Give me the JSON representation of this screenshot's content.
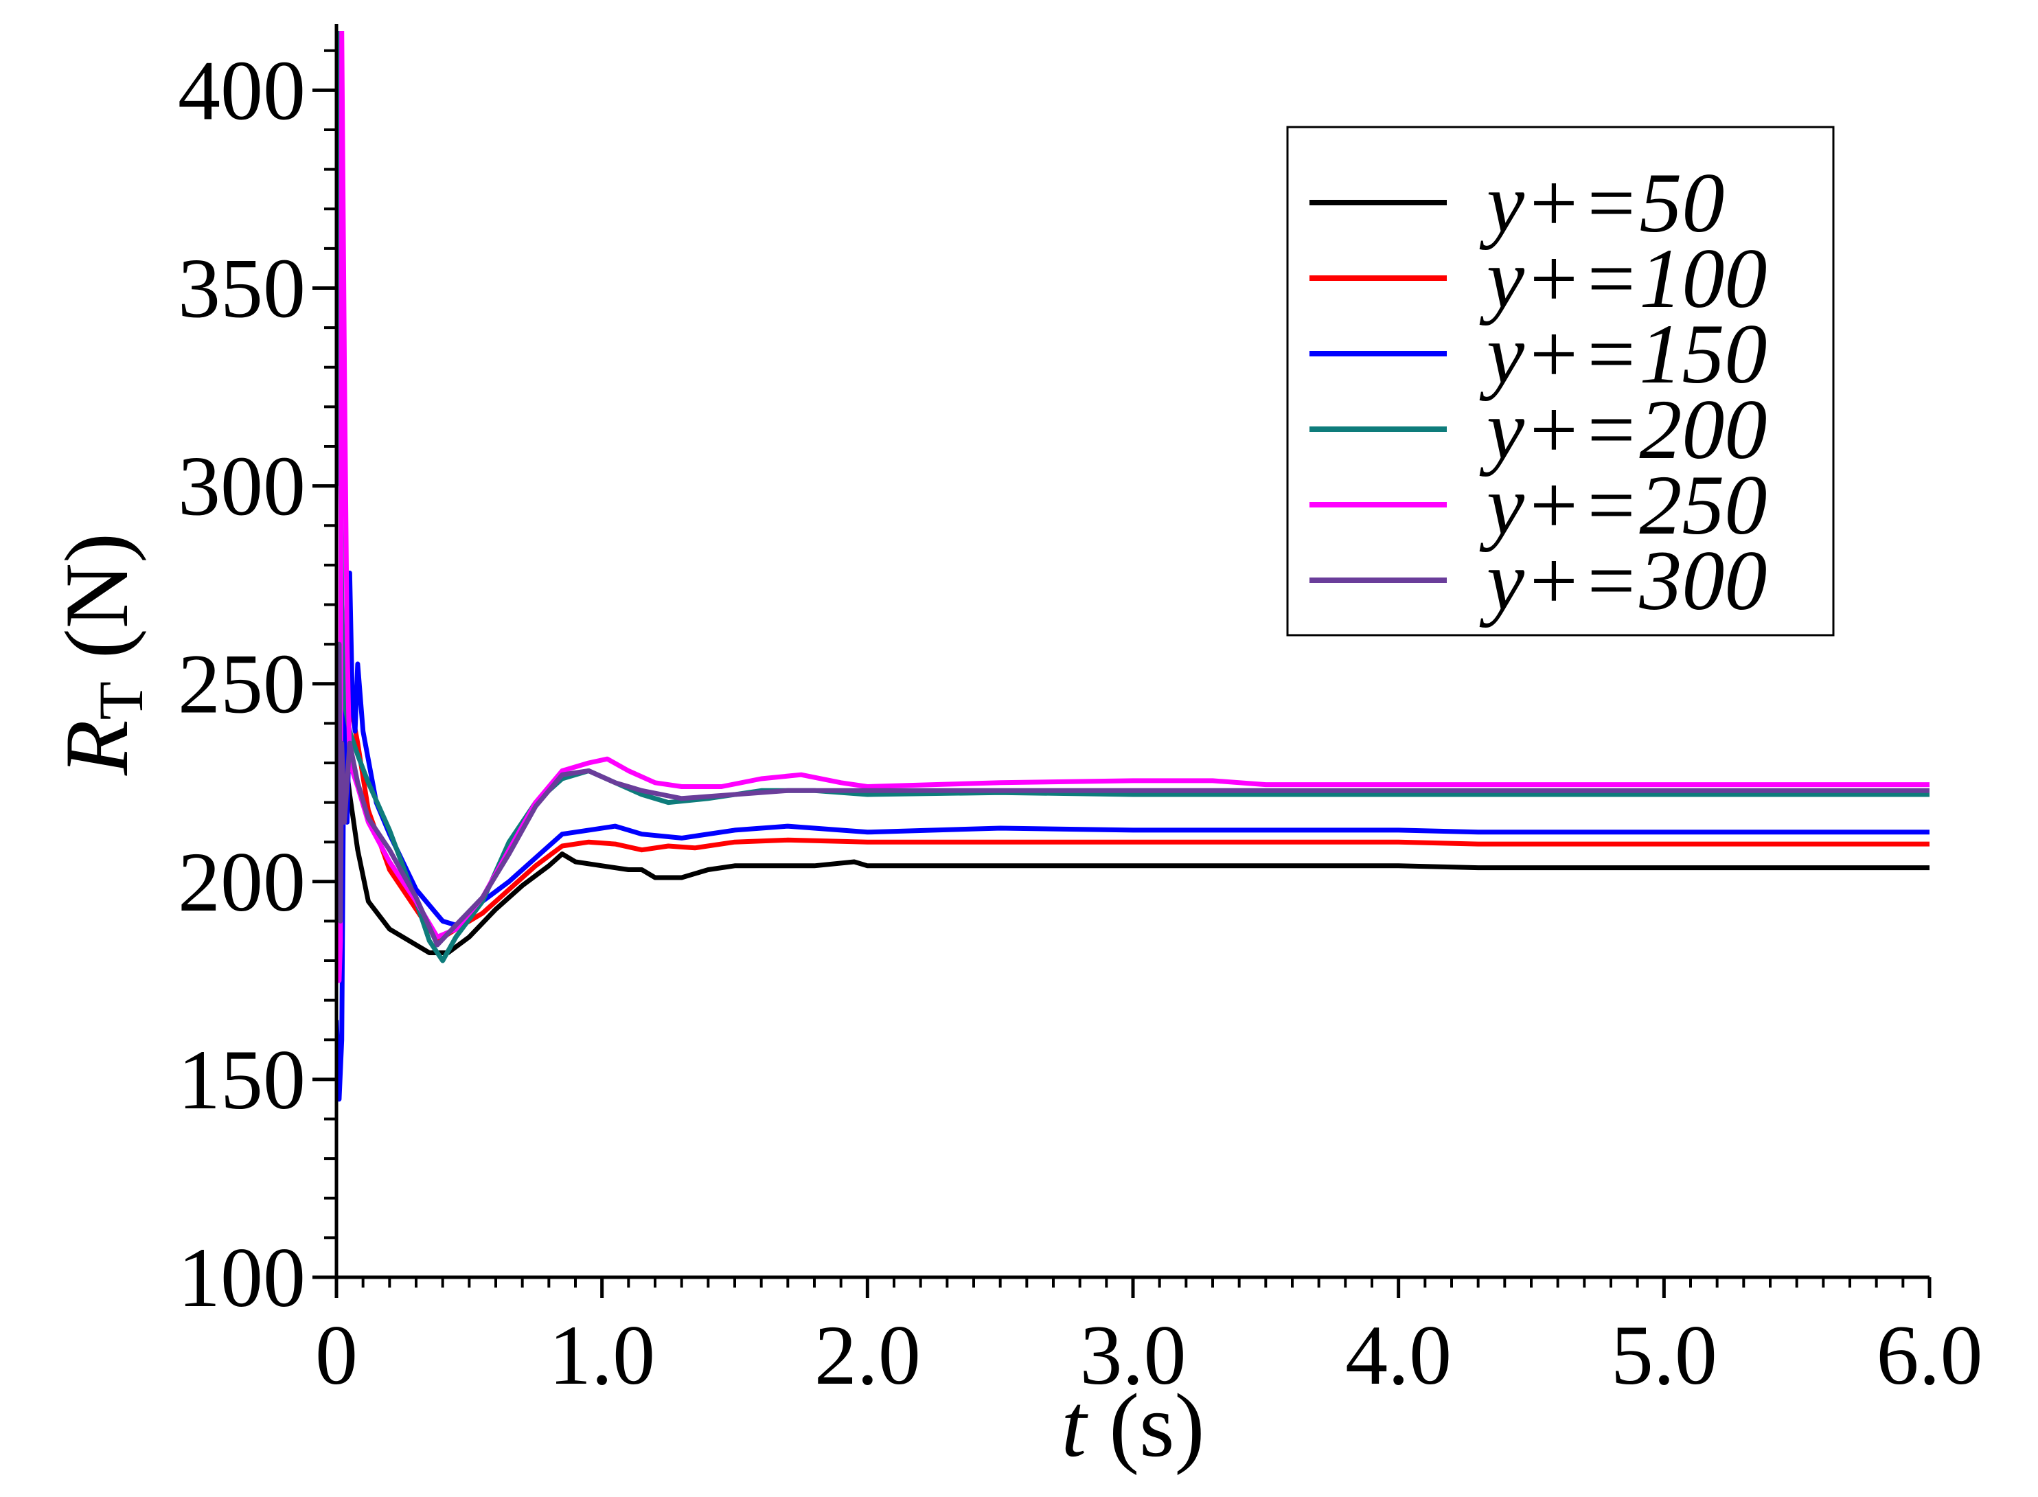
{
  "chart_data": {
    "type": "line",
    "title": "",
    "xlabel": {
      "var": "t",
      "unit": " (s)"
    },
    "ylabel": {
      "var": "R",
      "sub": "T",
      "unit": " (N)"
    },
    "xlim": [
      0,
      6.0
    ],
    "ylim": [
      100,
      415
    ],
    "xticks": [
      0,
      1.0,
      2.0,
      3.0,
      4.0,
      5.0,
      6.0
    ],
    "xtick_labels": [
      "0",
      "1.0",
      "2.0",
      "3.0",
      "4.0",
      "5.0",
      "6.0"
    ],
    "yticks": [
      100,
      150,
      200,
      250,
      300,
      350,
      400
    ],
    "ytick_labels": [
      "100",
      "150",
      "200",
      "250",
      "300",
      "350",
      "400"
    ],
    "x_minor_step": 0.1,
    "y_minor_step": 10,
    "grid": false,
    "legend_position": "top-right",
    "series": [
      {
        "name": "y+=50",
        "color": "#000000",
        "points": [
          [
            0.0,
            230
          ],
          [
            0.02,
            238
          ],
          [
            0.05,
            222
          ],
          [
            0.08,
            208
          ],
          [
            0.12,
            195
          ],
          [
            0.2,
            188
          ],
          [
            0.3,
            184
          ],
          [
            0.35,
            182
          ],
          [
            0.42,
            182
          ],
          [
            0.5,
            186
          ],
          [
            0.6,
            193
          ],
          [
            0.7,
            199
          ],
          [
            0.8,
            204
          ],
          [
            0.85,
            207
          ],
          [
            0.9,
            205
          ],
          [
            1.0,
            204
          ],
          [
            1.1,
            203
          ],
          [
            1.15,
            203
          ],
          [
            1.2,
            201
          ],
          [
            1.3,
            201
          ],
          [
            1.4,
            203
          ],
          [
            1.5,
            204
          ],
          [
            1.6,
            204
          ],
          [
            1.8,
            204
          ],
          [
            1.95,
            205
          ],
          [
            2.0,
            204
          ],
          [
            3.0,
            204
          ],
          [
            4.0,
            204
          ],
          [
            4.3,
            203.5
          ],
          [
            5.0,
            203.5
          ],
          [
            6.0,
            203.5
          ]
        ]
      },
      {
        "name": "y+=100",
        "color": "#ff0000",
        "points": [
          [
            0.0,
            225
          ],
          [
            0.03,
            244
          ],
          [
            0.05,
            246
          ],
          [
            0.08,
            235
          ],
          [
            0.12,
            218
          ],
          [
            0.2,
            203
          ],
          [
            0.3,
            193
          ],
          [
            0.38,
            185
          ],
          [
            0.45,
            188
          ],
          [
            0.55,
            192
          ],
          [
            0.65,
            198
          ],
          [
            0.75,
            204
          ],
          [
            0.85,
            209
          ],
          [
            0.95,
            210
          ],
          [
            1.05,
            209.5
          ],
          [
            1.15,
            208
          ],
          [
            1.25,
            209
          ],
          [
            1.35,
            208.5
          ],
          [
            1.5,
            210
          ],
          [
            1.7,
            210.5
          ],
          [
            2.0,
            210
          ],
          [
            3.0,
            210
          ],
          [
            4.0,
            210
          ],
          [
            4.3,
            209.5
          ],
          [
            5.0,
            209.5
          ],
          [
            6.0,
            209.5
          ]
        ]
      },
      {
        "name": "y+=150",
        "color": "#0000ff",
        "points": [
          [
            0.0,
            165
          ],
          [
            0.01,
            145
          ],
          [
            0.02,
            160
          ],
          [
            0.025,
            210
          ],
          [
            0.03,
            262
          ],
          [
            0.035,
            232
          ],
          [
            0.04,
            215
          ],
          [
            0.045,
            230
          ],
          [
            0.05,
            278
          ],
          [
            0.06,
            245
          ],
          [
            0.07,
            238
          ],
          [
            0.08,
            255
          ],
          [
            0.1,
            238
          ],
          [
            0.15,
            220
          ],
          [
            0.2,
            212
          ],
          [
            0.3,
            198
          ],
          [
            0.4,
            190
          ],
          [
            0.45,
            189
          ],
          [
            0.55,
            195
          ],
          [
            0.65,
            200
          ],
          [
            0.75,
            206
          ],
          [
            0.85,
            212
          ],
          [
            0.95,
            213
          ],
          [
            1.05,
            214
          ],
          [
            1.15,
            212
          ],
          [
            1.3,
            211
          ],
          [
            1.5,
            213
          ],
          [
            1.7,
            214
          ],
          [
            2.0,
            212.5
          ],
          [
            2.5,
            213.5
          ],
          [
            3.0,
            213
          ],
          [
            4.0,
            213
          ],
          [
            4.3,
            212.5
          ],
          [
            5.0,
            212.5
          ],
          [
            6.0,
            212.5
          ]
        ]
      },
      {
        "name": "y+=200",
        "color": "#0e7c7b",
        "points": [
          [
            0.0,
            300
          ],
          [
            0.005,
            415
          ],
          [
            0.01,
            350
          ],
          [
            0.02,
            270
          ],
          [
            0.03,
            245
          ],
          [
            0.05,
            238
          ],
          [
            0.08,
            232
          ],
          [
            0.12,
            225
          ],
          [
            0.2,
            213
          ],
          [
            0.3,
            195
          ],
          [
            0.35,
            185
          ],
          [
            0.4,
            180
          ],
          [
            0.45,
            186
          ],
          [
            0.55,
            195
          ],
          [
            0.65,
            210
          ],
          [
            0.75,
            220
          ],
          [
            0.85,
            226
          ],
          [
            0.95,
            228
          ],
          [
            1.05,
            225
          ],
          [
            1.15,
            222
          ],
          [
            1.25,
            220
          ],
          [
            1.4,
            221
          ],
          [
            1.6,
            223
          ],
          [
            1.8,
            223
          ],
          [
            2.0,
            222
          ],
          [
            2.5,
            222.5
          ],
          [
            3.0,
            222
          ],
          [
            4.0,
            222
          ],
          [
            5.0,
            222
          ],
          [
            6.0,
            222
          ]
        ]
      },
      {
        "name": "y+=250",
        "color": "#ff00ff",
        "points": [
          [
            0.0,
            190
          ],
          [
            0.01,
            175
          ],
          [
            0.015,
            185
          ],
          [
            0.02,
            415
          ],
          [
            0.03,
            330
          ],
          [
            0.04,
            260
          ],
          [
            0.05,
            230
          ],
          [
            0.08,
            224
          ],
          [
            0.12,
            215
          ],
          [
            0.2,
            205
          ],
          [
            0.3,
            195
          ],
          [
            0.38,
            186
          ],
          [
            0.45,
            188
          ],
          [
            0.55,
            196
          ],
          [
            0.65,
            208
          ],
          [
            0.75,
            220
          ],
          [
            0.85,
            228
          ],
          [
            0.95,
            230
          ],
          [
            1.02,
            231
          ],
          [
            1.1,
            228
          ],
          [
            1.2,
            225
          ],
          [
            1.3,
            224
          ],
          [
            1.45,
            224
          ],
          [
            1.6,
            226
          ],
          [
            1.75,
            227
          ],
          [
            1.9,
            225
          ],
          [
            2.0,
            224
          ],
          [
            2.5,
            225
          ],
          [
            3.0,
            225.5
          ],
          [
            3.3,
            225.5
          ],
          [
            3.5,
            224.5
          ],
          [
            4.0,
            224.5
          ],
          [
            5.0,
            224.5
          ],
          [
            6.0,
            224.5
          ]
        ]
      },
      {
        "name": "y+=300",
        "color": "#6a3d9a",
        "points": [
          [
            0.0,
            200
          ],
          [
            0.01,
            260
          ],
          [
            0.015,
            190
          ],
          [
            0.02,
            235
          ],
          [
            0.03,
            215
          ],
          [
            0.05,
            235
          ],
          [
            0.08,
            225
          ],
          [
            0.12,
            216
          ],
          [
            0.2,
            208
          ],
          [
            0.3,
            196
          ],
          [
            0.38,
            184
          ],
          [
            0.45,
            189
          ],
          [
            0.55,
            196
          ],
          [
            0.65,
            207
          ],
          [
            0.75,
            219
          ],
          [
            0.85,
            227
          ],
          [
            0.95,
            228
          ],
          [
            1.05,
            225
          ],
          [
            1.15,
            223
          ],
          [
            1.3,
            221
          ],
          [
            1.5,
            222
          ],
          [
            1.7,
            223
          ],
          [
            2.0,
            223
          ],
          [
            3.0,
            223
          ],
          [
            4.0,
            223
          ],
          [
            5.0,
            223
          ],
          [
            6.0,
            223
          ]
        ]
      }
    ]
  }
}
